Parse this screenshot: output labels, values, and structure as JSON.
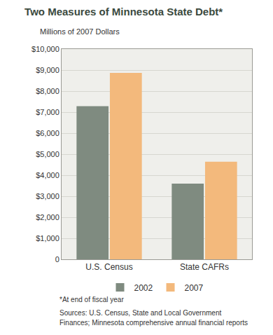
{
  "chart_data": {
    "type": "bar",
    "title": "Two Measures of Minnesota State Debt*",
    "y_label": "Millions of 2007 Dollars",
    "categories": [
      "U.S. Census",
      "State CAFRs"
    ],
    "series": [
      {
        "name": "2002",
        "color": "#7f8b80",
        "values": [
          7280,
          3600
        ]
      },
      {
        "name": "2007",
        "color": "#f3b97c",
        "values": [
          8870,
          4640
        ]
      }
    ],
    "ylim": [
      0,
      10000
    ],
    "yticks": [
      0,
      {
        "value": 1000,
        "label": "$1,000"
      },
      {
        "value": 2000,
        "label": "$2,000"
      },
      {
        "value": 3000,
        "label": "$3,000"
      },
      {
        "value": 4000,
        "label": "$4,000"
      },
      {
        "value": 5000,
        "label": "$5,000"
      },
      {
        "value": 6000,
        "label": "$6,000"
      },
      {
        "value": 7000,
        "label": "$7,000"
      },
      {
        "value": 8000,
        "label": "$8,000"
      },
      {
        "value": 9000,
        "label": "$9,000"
      },
      {
        "value": 10000,
        "label": "$10,000"
      }
    ],
    "grid": true,
    "legend": "bottom",
    "annotations": [
      "*At end of fiscal year",
      "Sources: U.S. Census, State and Local Government",
      "Finances; Minnesota comprehensive annual financial reports"
    ]
  }
}
